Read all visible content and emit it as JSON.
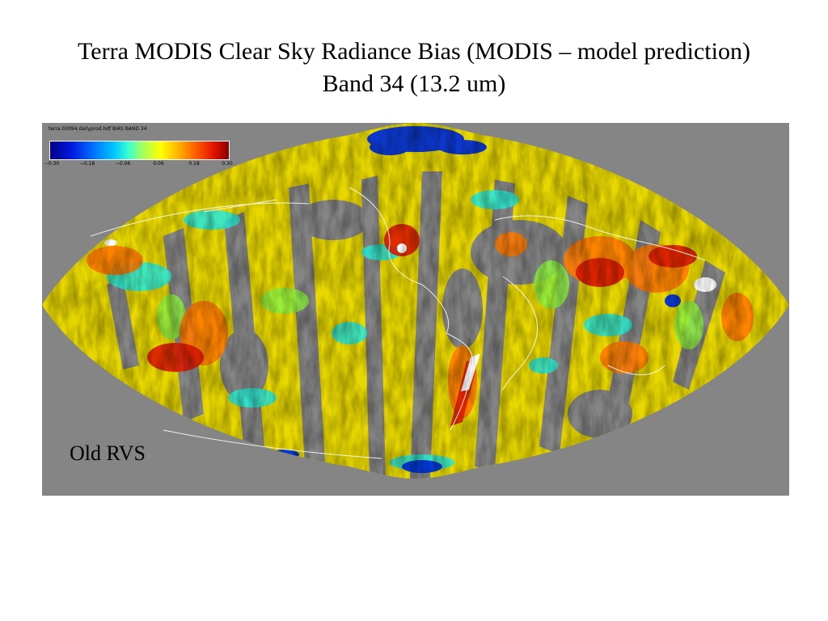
{
  "title": {
    "line1": "Terra MODIS Clear Sky Radiance Bias (MODIS – model prediction)",
    "line2": "Band 34 (13.2 um)"
  },
  "map": {
    "projection": "sinusoidal",
    "file_label": "terra.03094.dailyprod.hdf BIAS BAND 34",
    "colorbar": {
      "min": -0.3,
      "max": 0.3,
      "tick_labels": [
        "−0.30",
        "−0.18",
        "−0.06",
        "0.06",
        "0.18",
        "0.30"
      ],
      "colors": [
        "#05008a",
        "#0018e0",
        "#0070ff",
        "#00c8ff",
        "#3cffd0",
        "#a8ff5a",
        "#ffff00",
        "#ffb000",
        "#ff5a00",
        "#e01000",
        "#8a0000"
      ]
    },
    "background_color": "#858585",
    "coastline_color": "#ffffff"
  },
  "caption": "Old RVS"
}
